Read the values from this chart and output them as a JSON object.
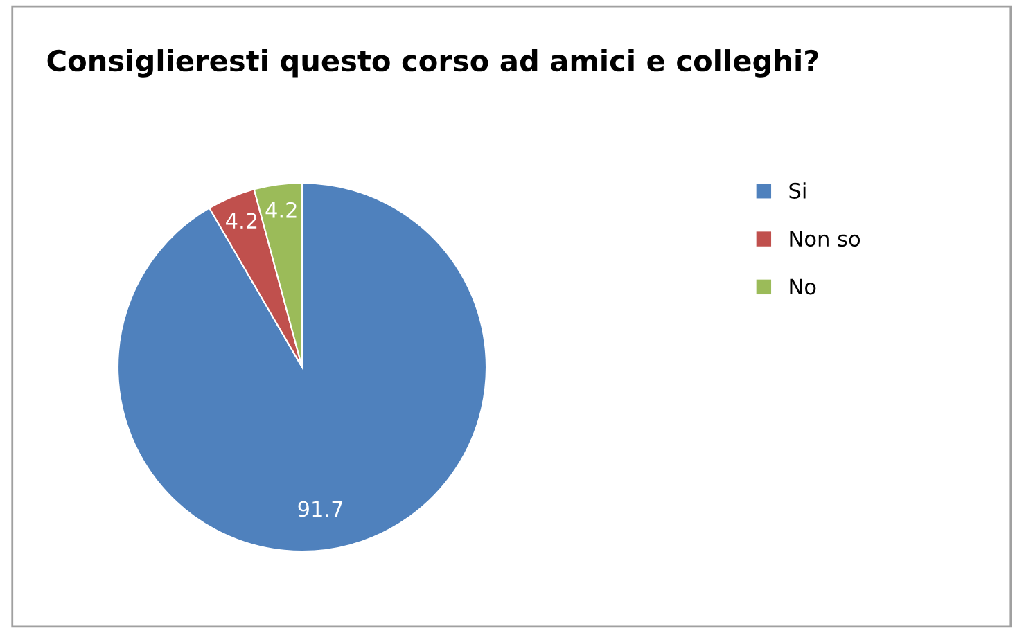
{
  "chart_data": {
    "type": "pie",
    "title": "Consiglieresti questo corso ad amici e colleghi?",
    "categories": [
      "Si",
      "Non so",
      "No"
    ],
    "values": [
      91.7,
      4.2,
      4.2
    ],
    "colors": [
      "#4f81bd",
      "#c0504d",
      "#9bbb59"
    ],
    "data_labels": true,
    "legend": "right"
  }
}
